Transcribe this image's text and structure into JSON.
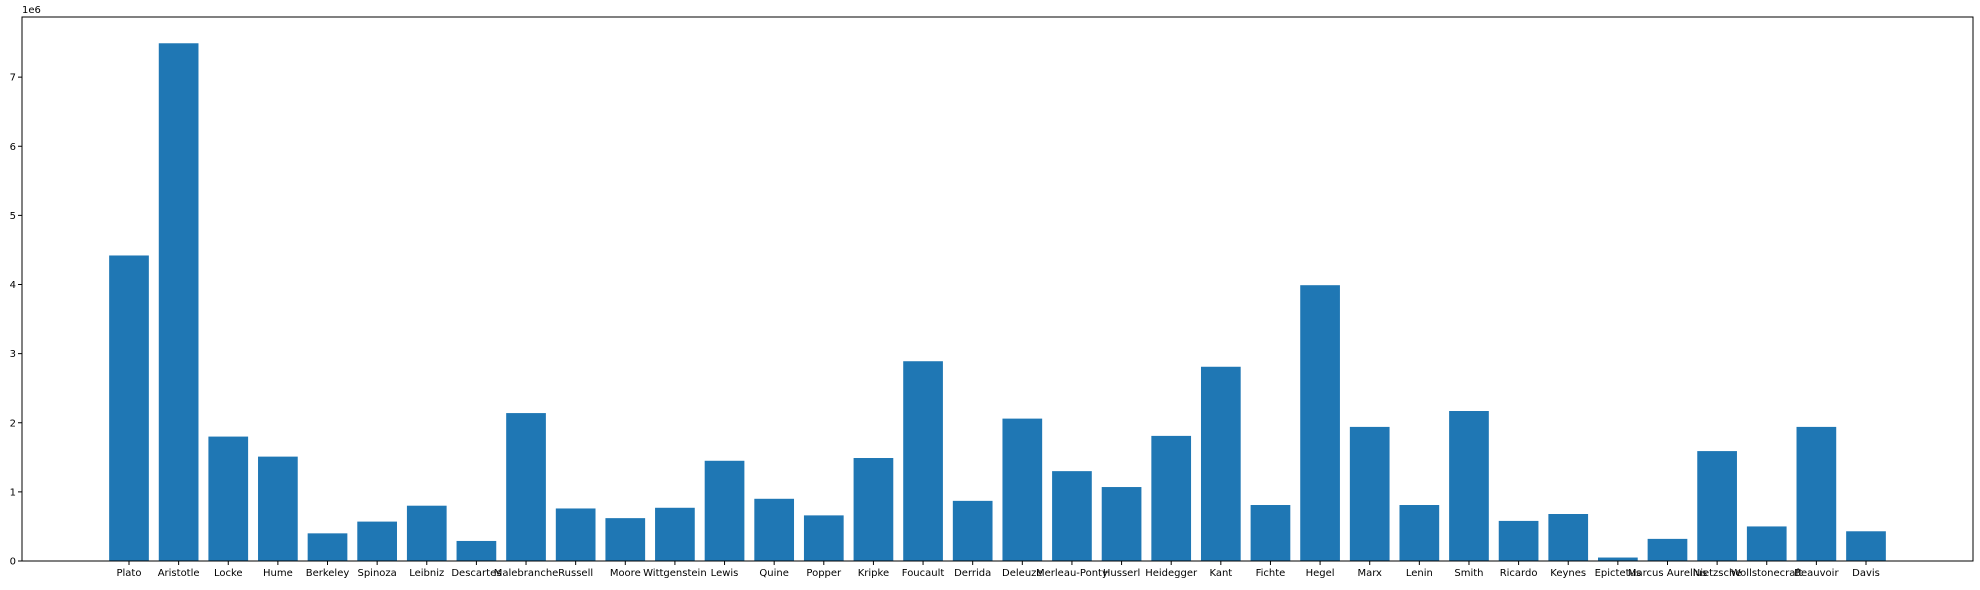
{
  "chart_data": {
    "type": "bar",
    "title": "",
    "xlabel": "",
    "ylabel": "",
    "y_offset_label": "1e6",
    "ylim": [
      0,
      7.87
    ],
    "yticks": [
      0,
      1,
      2,
      3,
      4,
      5,
      6,
      7
    ],
    "grid": false,
    "bar_color": "#1f77b4",
    "categories": [
      "Plato",
      "Aristotle",
      "Locke",
      "Hume",
      "Berkeley",
      "Spinoza",
      "Leibniz",
      "Descartes",
      "Malebranche",
      "Russell",
      "Moore",
      "Wittgenstein",
      "Lewis",
      "Quine",
      "Popper",
      "Kripke",
      "Foucault",
      "Derrida",
      "Deleuze",
      "Merleau-Ponty",
      "Husserl",
      "Heidegger",
      "Kant",
      "Fichte",
      "Hegel",
      "Marx",
      "Lenin",
      "Smith",
      "Ricardo",
      "Keynes",
      "Epictetus",
      "Marcus Aurelius",
      "Nietzsche",
      "Wollstonecraft",
      "Beauvoir",
      "Davis"
    ],
    "values": [
      4.42,
      7.49,
      1.8,
      1.51,
      0.4,
      0.57,
      0.8,
      0.29,
      2.14,
      0.76,
      0.62,
      0.77,
      1.45,
      0.9,
      0.66,
      1.49,
      2.89,
      0.87,
      2.06,
      1.3,
      1.07,
      1.81,
      2.81,
      0.81,
      3.99,
      1.94,
      0.81,
      2.17,
      0.58,
      0.68,
      0.05,
      0.32,
      1.59,
      0.5,
      1.94,
      0.43
    ]
  }
}
